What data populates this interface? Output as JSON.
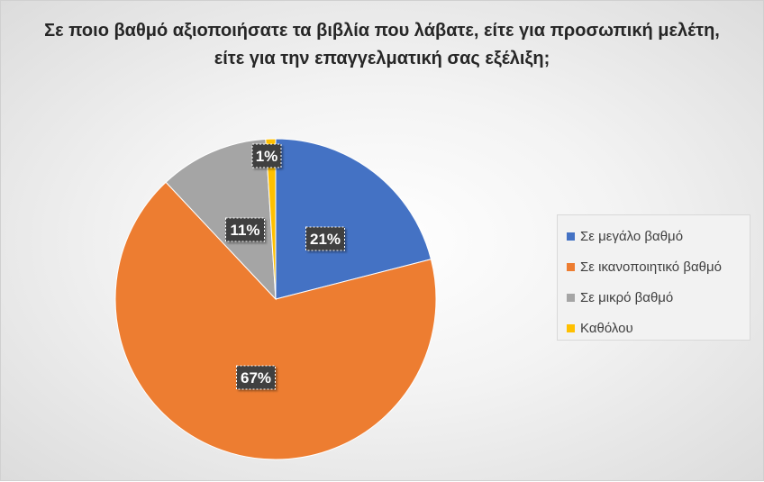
{
  "chart_data": {
    "type": "pie",
    "title": "Σε ποιο βαθμό αξιοποιήσατε τα βιβλία που λάβατε, είτε για προσωπική μελέτη, είτε για την επαγγελματική σας εξέλιξη;",
    "categories": [
      "Σε μεγάλο βαθμό",
      "Σε ικανοποιητικό βαθμό",
      "Σε μικρό βαθμό",
      "Καθόλου"
    ],
    "values": [
      21,
      67,
      11,
      1
    ],
    "data_labels": [
      "21%",
      "67%",
      "11%",
      "1%"
    ],
    "colors": [
      "#4472C4",
      "#ED7D31",
      "#A5A5A5",
      "#FFC000"
    ],
    "legend_position": "right"
  }
}
